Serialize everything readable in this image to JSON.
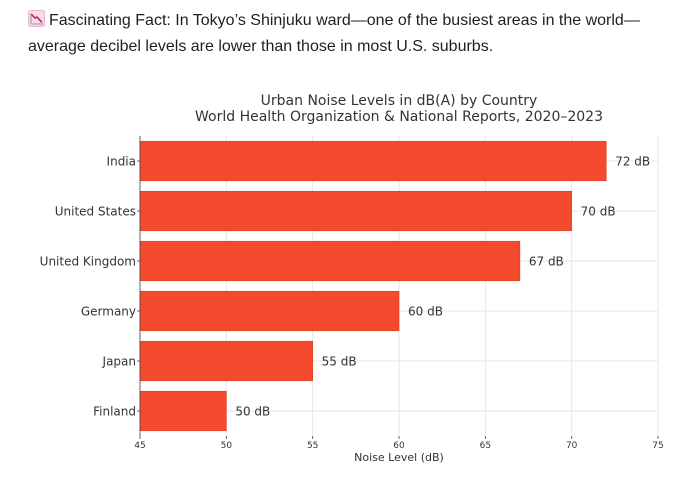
{
  "post": {
    "icon": "chart-decreasing-icon",
    "fact_text": "Fascinating Fact: In Tokyo’s Shinjuku ward—one of the busiest areas in the world—average decibel levels are lower than those in most U.S. suburbs."
  },
  "colors": {
    "bar": "#f44a2d",
    "bar_edge": "#e23a1f",
    "grid": "#e6e6e6",
    "icon_bg": "#f7dbe8",
    "icon_line": "#c2185b"
  },
  "chart_data": {
    "type": "bar",
    "orientation": "horizontal",
    "title": "Urban Noise Levels in dB(A) by Country",
    "subtitle": "World Health Organization & National Reports, 2020–2023",
    "xlabel": "Noise Level (dB)",
    "ylabel": "",
    "categories": [
      "India",
      "United States",
      "United Kingdom",
      "Germany",
      "Japan",
      "Finland"
    ],
    "values": [
      72,
      70,
      67,
      60,
      55,
      50
    ],
    "data_labels": [
      "72 dB",
      "70 dB",
      "67 dB",
      "60 dB",
      "55 dB",
      "50 dB"
    ],
    "xlim": [
      45,
      75
    ],
    "xticks": [
      "45",
      "50",
      "55",
      "60",
      "65",
      "70",
      "75"
    ],
    "grid": true,
    "legend": "none"
  }
}
